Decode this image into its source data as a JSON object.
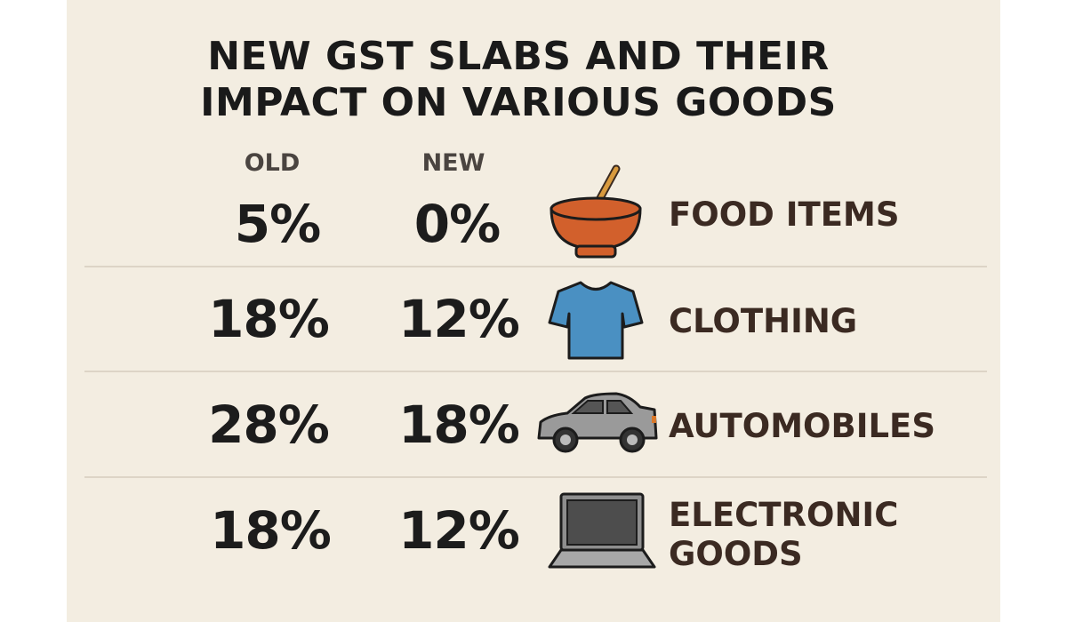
{
  "title": {
    "line1": "NEW GST SLABS AND THEIR",
    "line2": "IMPACT ON VARIOUS GOODS"
  },
  "columns": {
    "old": "OLD",
    "new": "NEW"
  },
  "rows": [
    {
      "old": "5%",
      "new": "0%",
      "label": "FOOD ITEMS",
      "icon": "bowl-icon"
    },
    {
      "old": "18%",
      "new": "12%",
      "label": "CLOTHING",
      "icon": "tshirt-icon"
    },
    {
      "old": "28%",
      "new": "18%",
      "label": "AUTOMOBILES",
      "icon": "car-icon"
    },
    {
      "old": "18%",
      "new": "12%",
      "label_line1": "ELECTRONIC",
      "label_line2": "GOODS",
      "icon": "laptop-icon"
    }
  ],
  "colors": {
    "background": "#f3ede1",
    "bowl": "#d2602c",
    "shirt": "#4a90c2",
    "car": "#9a9a9a",
    "label": "#3b2a22"
  }
}
